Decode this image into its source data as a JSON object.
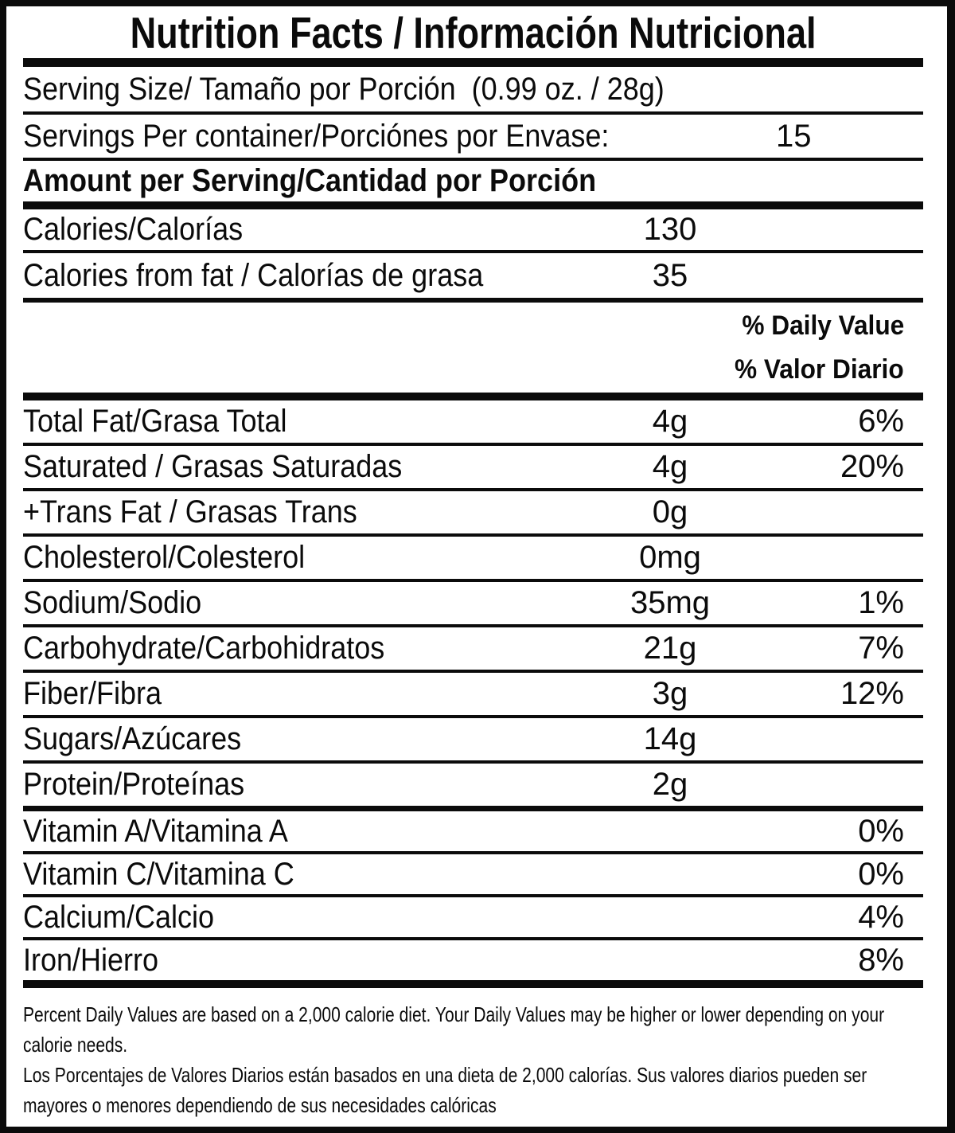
{
  "colors": {
    "ink": "#0b0b0b",
    "background": "#ffffff"
  },
  "title": "Nutrition Facts / Información Nutricional",
  "serving_info": {
    "serving_size": "Serving Size/ Tamaño por Porción  (0.99 oz. / 28g)",
    "servings_per_container_label": "Servings Per container/Porciónes por Envase:",
    "servings_per_container_value": "15",
    "amount_per_serving": "Amount per Serving/Cantidad por Porción"
  },
  "calories_rows": [
    {
      "label": "Calories/Calorías",
      "value": "130"
    },
    {
      "label": "Calories from fat / Calorías de grasa",
      "value": "35"
    }
  ],
  "daily_value_header": {
    "line1": "% Daily Value",
    "line2": "% Valor Diario"
  },
  "nutrients": [
    {
      "label": "Total Fat/Grasa Total",
      "amount": "4g",
      "daily_value": "6%"
    },
    {
      "label": "Saturated / Grasas Saturadas",
      "amount": "4g",
      "daily_value": "20%"
    },
    {
      "label": "+Trans Fat / Grasas Trans",
      "amount": "0g",
      "daily_value": ""
    },
    {
      "label": "Cholesterol/Colesterol",
      "amount": "0mg",
      "daily_value": ""
    },
    {
      "label": "Sodium/Sodio",
      "amount": "35mg",
      "daily_value": "1%"
    },
    {
      "label": "Carbohydrate/Carbohidratos",
      "amount": "21g",
      "daily_value": "7%"
    },
    {
      "label": "Fiber/Fibra",
      "amount": "3g",
      "daily_value": "12%"
    },
    {
      "label": "Sugars/Azúcares",
      "amount": "14g",
      "daily_value": ""
    },
    {
      "label": "Protein/Proteínas",
      "amount": "2g",
      "daily_value": ""
    }
  ],
  "micronutrients": [
    {
      "label": "Vitamin A/Vitamina A",
      "daily_value": "0%"
    },
    {
      "label": "Vitamin C/Vitamina C",
      "daily_value": "0%"
    },
    {
      "label": "Calcium/Calcio",
      "daily_value": "4%"
    },
    {
      "label": "Iron/Hierro",
      "daily_value": "8%"
    }
  ],
  "footnotes": {
    "en": "Percent Daily Values are based on a 2,000 calorie diet. Your Daily Values may be higher or lower depending on your calorie needs.",
    "es": "Los Porcentajes de Valores Diarios están basados en una dieta de 2,000 calorías. Sus valores diarios pueden ser mayores o menores dependiendo de sus necesidades calóricas"
  }
}
